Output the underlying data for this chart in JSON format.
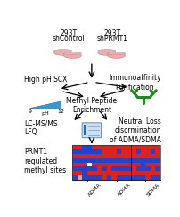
{
  "fig_width": 2.03,
  "fig_height": 2.44,
  "dpi": 100,
  "bg_color": "#ffffff",
  "title1": "293T",
  "title2": "293T",
  "subtitle1": "shControl",
  "subtitle2": "shPRMT1",
  "label_high_ph_scx": "High pH SCX",
  "label_immunoaffinity": "Immunoaffinity\nPurification",
  "label_methyl_peptide": "Methyl Peptide\nEnrichment",
  "label_lcms": "LC-MS/MS\nLFQ",
  "label_neutral_loss": "Neutral Loss\ndiscrmination\nof ADMA/SDMA",
  "label_prmt1": "PRMT1\nregulated\nmethyl sites",
  "label_adma1": "ADMA",
  "label_adma2": "ADMA",
  "label_sdma": "SDMA",
  "ph_label_9": "9",
  "ph_label_ph": "pH",
  "ph_label_12": "12",
  "text_fontsize": 5.5,
  "small_fontsize": 4.5,
  "arrow_color": "#000000",
  "dish_color_body": "#f4a8a8",
  "dish_color_top": "#f8c8c8",
  "dish_color_rim": "#e88888",
  "dish_edge": "#999999",
  "triangle_color": "#3399dd",
  "antibody_color": "#228822",
  "heatmap_red": "#dd2222",
  "heatmap_blue": "#2244cc",
  "heatmap_white": "#ffffff",
  "heatmap_pink": "#ee9999"
}
